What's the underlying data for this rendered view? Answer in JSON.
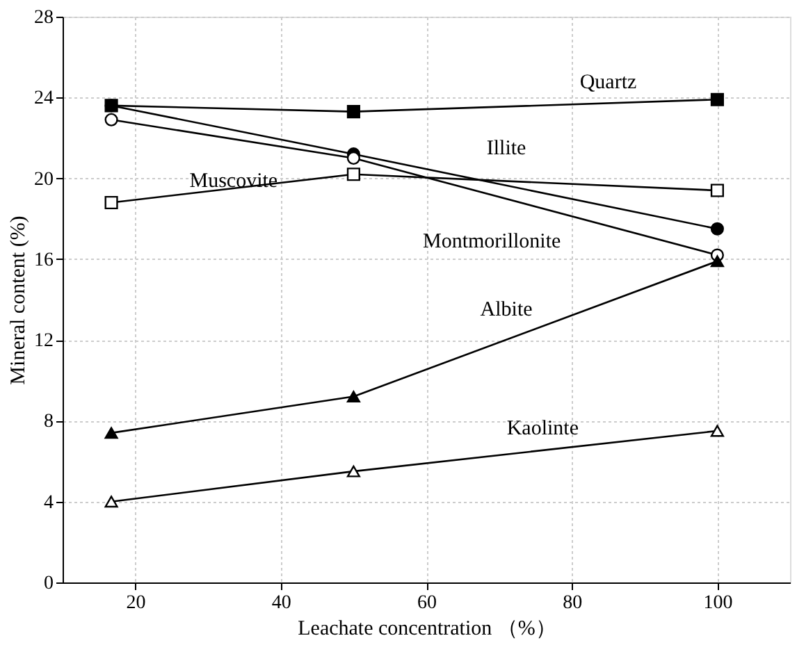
{
  "chart_data": {
    "type": "line",
    "xlabel": "Leachate concentration （%）",
    "ylabel": "Mineral content (%)",
    "x": [
      16.7,
      50,
      100
    ],
    "series": [
      {
        "color": "#000000",
        "marker": "square",
        "values": [
          23.6,
          23.3,
          23.9
        ]
      },
      {
        "color": "#000000",
        "marker": "circle",
        "values": [
          23.6,
          21.2,
          17.5
        ]
      },
      {
        "color": "#000000",
        "marker": "circle",
        "values": [
          22.9,
          21.0,
          16.2
        ]
      },
      {
        "color": "#000000",
        "marker": "square",
        "values": [
          18.8,
          20.2,
          19.4
        ]
      },
      {
        "color": "#000000",
        "marker": "triangle",
        "values": [
          7.4,
          9.2,
          15.9
        ]
      },
      {
        "color": "#000000",
        "marker": "triangle",
        "values": [
          4.0,
          5.5,
          7.5
        ]
      }
    ],
    "annotations": [
      "Quartz",
      "Illite",
      "Muscovite",
      "Montmorillonite",
      "Albite",
      "Kaolinte"
    ],
    "xlim": [
      10,
      110
    ],
    "xticks": [
      20,
      40,
      60,
      80,
      100
    ],
    "ylim": [
      0,
      28
    ],
    "yticks": [
      0,
      4,
      8,
      12,
      16,
      20,
      24,
      28
    ],
    "grid": true,
    "line_style": "solid"
  }
}
